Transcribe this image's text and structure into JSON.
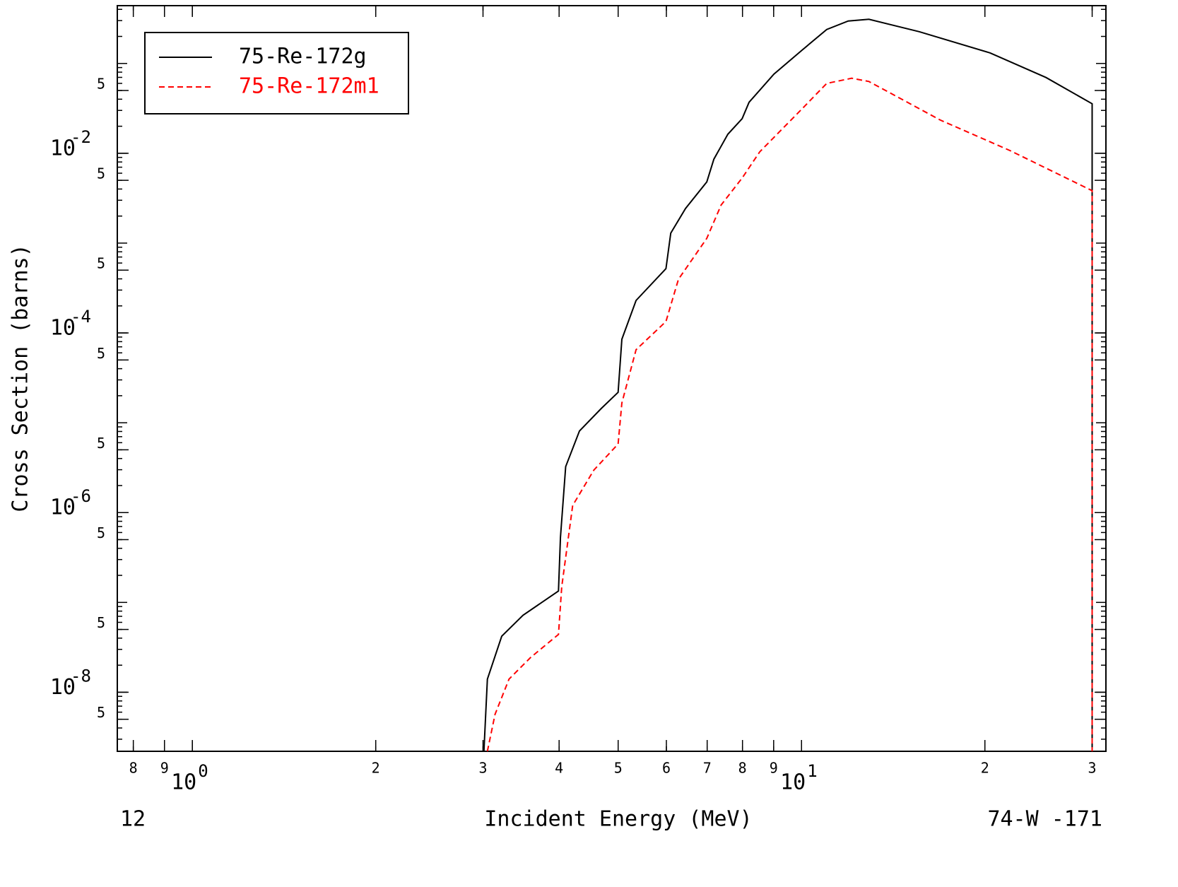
{
  "chart_data": {
    "type": "line",
    "x_label": "Incident Energy (MeV)",
    "y_label": "Cross Section (barns)",
    "footer_left": "12",
    "footer_right": "74-W -171",
    "xscale": "log",
    "yscale": "log",
    "xlim": [
      0.753,
      31.6
    ],
    "ylim": [
      2.2e-09,
      0.44
    ],
    "xticks": [
      {
        "value": 0.8,
        "label": "8"
      },
      {
        "value": 0.9,
        "label": "9"
      },
      {
        "value": 1,
        "label": "10",
        "sup": "0"
      },
      2,
      3,
      4,
      5,
      6,
      7,
      8,
      9,
      {
        "value": 10,
        "label": "10",
        "sup": "1"
      },
      {
        "value": 20,
        "label": "2"
      },
      {
        "value": 30,
        "label": "3"
      }
    ],
    "yticks": [
      {
        "value": 0.05,
        "label": "5"
      },
      {
        "value": 0.01,
        "label": "10",
        "sup": "-2"
      },
      {
        "value": 0.005,
        "label": "5"
      },
      {
        "value": 0.0005,
        "label": "5"
      },
      {
        "value": 0.0001,
        "label": "10",
        "sup": "-4"
      },
      {
        "value": 5e-05,
        "label": "5"
      },
      {
        "value": 5e-06,
        "label": "5"
      },
      {
        "value": 1e-06,
        "label": "10",
        "sup": "-6"
      },
      {
        "value": 5e-07,
        "label": "5"
      },
      {
        "value": 5e-08,
        "label": "5"
      },
      {
        "value": 1e-08,
        "label": "10",
        "sup": "-8"
      },
      {
        "value": 5e-09,
        "label": "5"
      }
    ],
    "legend": "upper left",
    "series": [
      {
        "name": "75-Re-172g",
        "color": "#000000",
        "dash": "solid",
        "x": [
          3.01,
          3.05,
          3.22,
          3.49,
          3.99,
          4.02,
          4.1,
          4.32,
          4.69,
          5.0,
          5.07,
          5.35,
          5.99,
          6.1,
          6.45,
          6.99,
          7.18,
          7.57,
          7.99,
          8.2,
          9.01,
          10,
          11.0,
          11.93,
          12.9,
          15.6,
          20.4,
          25.2,
          30,
          30
        ],
        "values": [
          2.2e-09,
          1.4e-08,
          4.2e-08,
          7.2e-08,
          1.34e-07,
          5.3e-07,
          3.25e-06,
          8.1e-06,
          1.44e-05,
          2.18e-05,
          8.5e-05,
          0.00023,
          0.00052,
          0.00129,
          0.00243,
          0.0048,
          0.0086,
          0.0163,
          0.0243,
          0.037,
          0.076,
          0.139,
          0.239,
          0.297,
          0.31,
          0.226,
          0.131,
          0.0697,
          0.0356,
          2.2e-09
        ]
      },
      {
        "name": "75-Re-172m1",
        "color": "#ff0000",
        "dash": "dashed",
        "x": [
          3.05,
          3.14,
          3.31,
          3.59,
          3.99,
          4.04,
          4.21,
          4.56,
          5.0,
          5.07,
          5.35,
          5.99,
          6.28,
          6.99,
          7.38,
          7.99,
          8.54,
          10,
          11.0,
          12.09,
          12.9,
          16.9,
          22.0,
          30,
          30
        ],
        "values": [
          2.2e-09,
          5.7e-09,
          1.4e-08,
          2.43e-08,
          4.4e-08,
          1.49e-07,
          1.2e-06,
          2.97e-06,
          5.8e-06,
          1.66e-05,
          6.5e-05,
          0.000134,
          0.000396,
          0.00113,
          0.00266,
          0.0053,
          0.0104,
          0.0308,
          0.06,
          0.0684,
          0.063,
          0.0234,
          0.0107,
          0.00383,
          2.2e-09
        ]
      }
    ]
  }
}
